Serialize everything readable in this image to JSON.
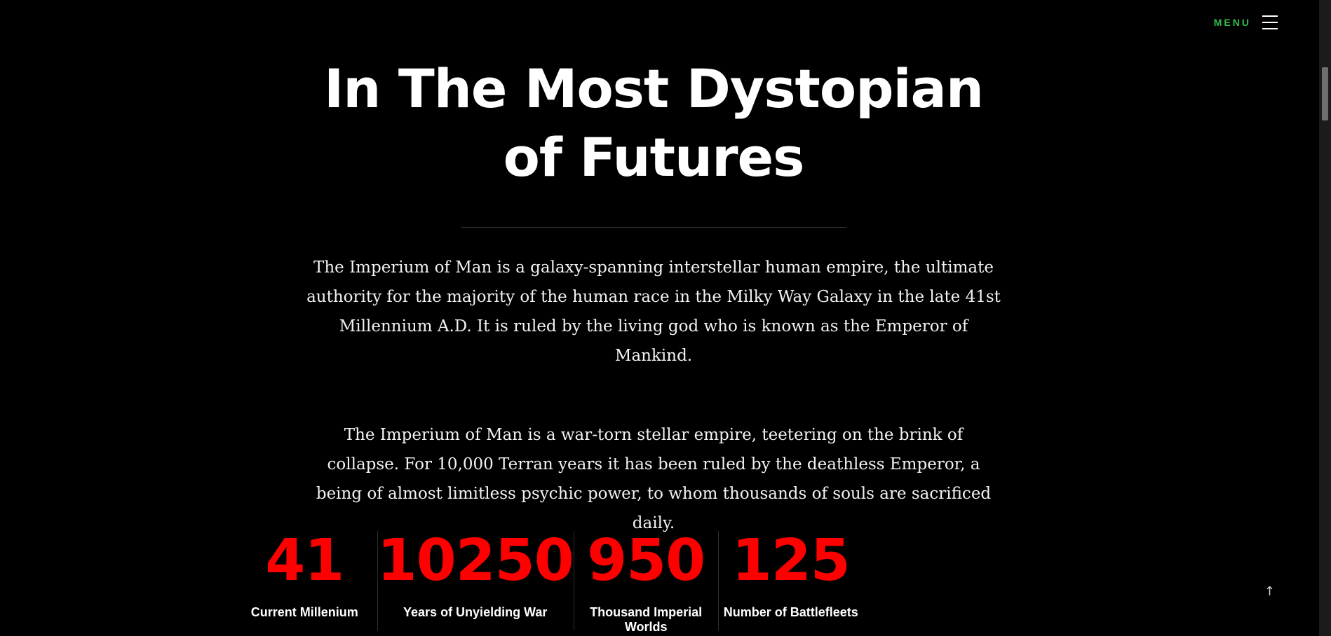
{
  "header": {
    "menu_label": "MENU",
    "menu_color": "#2fbf4a",
    "menu_icon": "hamburger-icon"
  },
  "hero": {
    "title_line1": "In The Most Dystopian",
    "title_line2": "of Futures"
  },
  "paragraphs": [
    "The Imperium of Man is a galaxy-spanning interstellar human empire, the ultimate authority for the majority of the human race in the Milky Way Galaxy in the late 41st Millennium A.D. It is ruled by the living god who is known as the Emperor of Mankind.",
    "The Imperium of Man is a war-torn stellar empire, teetering on the brink of collapse. For 10,000 Terran years it has been ruled by the deathless Emperor, a being of almost limitless psychic power, to whom thousands of souls are sacrificed daily."
  ],
  "stats": [
    {
      "value": "41",
      "label": "Current Millenium"
    },
    {
      "value": "10250",
      "label": "Years of Unyielding War"
    },
    {
      "value": "950",
      "label": "Thousand Imperial Worlds"
    },
    {
      "value": "125",
      "label": "Number of Battlefleets"
    }
  ],
  "stat_color": "#ff0000",
  "back_to_top": {
    "icon": "arrow-up-icon",
    "glyph": "↑"
  }
}
